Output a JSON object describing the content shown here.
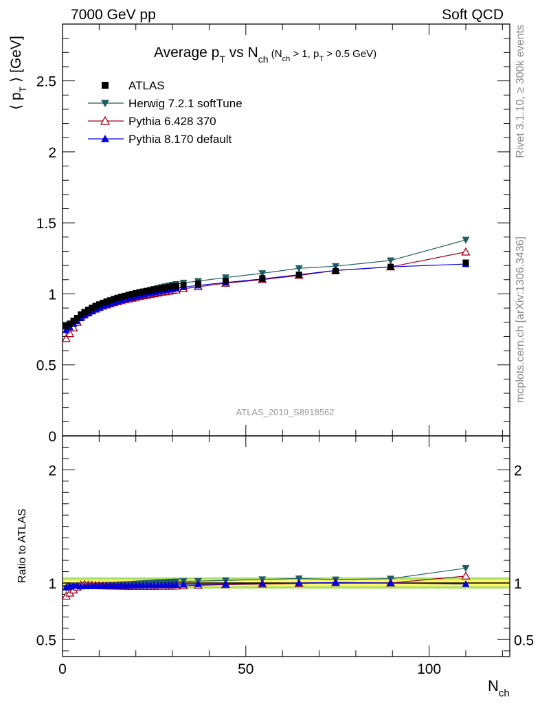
{
  "header": {
    "left": "7000 GeV pp",
    "right": "Soft QCD"
  },
  "side_labels": {
    "top": "Rivet 3.1.10, ≥ 300k events",
    "bottom": "mcplots.cern.ch [arXiv:1306.3436]"
  },
  "chart_data": {
    "type": "line",
    "title": {
      "main_a": "Average p",
      "main_a_sub": "T",
      "main_b": " vs N",
      "main_b_sub": "ch",
      "cut_a": " (N",
      "cut_a_sub": "ch",
      "cut_b": " > 1, p",
      "cut_b_sub": "T",
      "cut_c": " > 0.5 GeV)"
    },
    "analysis_id": "ATLAS_2010_S8918562",
    "ylabel": {
      "pre": "⟨ p",
      "sub": "T",
      "post": " ⟩  [GeV]"
    },
    "ratio_ylabel": "Ratio to ATLAS",
    "xlabel": {
      "main": "N",
      "sub": "ch"
    },
    "xlim": [
      0,
      122
    ],
    "ylim": [
      0,
      2.9
    ],
    "ratio_ylim": [
      0.35,
      2.3
    ],
    "x_ticks": [
      0,
      50,
      100
    ],
    "y_ticks": [
      0,
      0.5,
      1,
      1.5,
      2,
      2.5
    ],
    "y_tick_labels": [
      "0",
      "0.5",
      "1",
      "1.5",
      "2",
      "2.5"
    ],
    "ratio_ticks": [
      0.5,
      1,
      2
    ],
    "ratio_tick_labels": [
      "0.5",
      "1",
      "2"
    ],
    "x": [
      1,
      2,
      3,
      4,
      5,
      6,
      7,
      8,
      9,
      10,
      11,
      12,
      13,
      14,
      15,
      16,
      17,
      18,
      19,
      20,
      21,
      22,
      23,
      24,
      25,
      26,
      27,
      28,
      29,
      30,
      31,
      33,
      37,
      44.5,
      54.5,
      64.5,
      74.5,
      89.5,
      110
    ],
    "series": [
      {
        "name": "ATLAS",
        "color": "#000000",
        "marker": "square",
        "values": [
          0.775,
          0.79,
          0.81,
          0.83,
          0.855,
          0.872,
          0.888,
          0.902,
          0.915,
          0.926,
          0.937,
          0.946,
          0.955,
          0.964,
          0.972,
          0.979,
          0.986,
          0.993,
          0.999,
          1.005,
          1.011,
          1.016,
          1.021,
          1.026,
          1.031,
          1.035,
          1.04,
          1.044,
          1.048,
          1.052,
          1.055,
          1.062,
          1.072,
          1.09,
          1.11,
          1.135,
          1.16,
          1.19,
          1.22
        ]
      },
      {
        "name": "Herwig 7.2.1 softTune",
        "color": "#1f5c60",
        "marker": "triangle-down",
        "values": [
          0.74,
          0.765,
          0.79,
          0.81,
          0.83,
          0.85,
          0.865,
          0.88,
          0.893,
          0.905,
          0.917,
          0.928,
          0.938,
          0.948,
          0.957,
          0.966,
          0.974,
          0.982,
          0.99,
          0.998,
          1.006,
          1.013,
          1.02,
          1.027,
          1.034,
          1.04,
          1.046,
          1.052,
          1.058,
          1.063,
          1.068,
          1.078,
          1.09,
          1.115,
          1.145,
          1.18,
          1.195,
          1.235,
          1.38
        ]
      },
      {
        "name": "Pythia 6.428 370",
        "color": "#a0001c",
        "marker": "triangle-up-open",
        "values": [
          0.685,
          0.72,
          0.76,
          0.8,
          0.84,
          0.86,
          0.872,
          0.885,
          0.895,
          0.905,
          0.914,
          0.922,
          0.93,
          0.938,
          0.945,
          0.952,
          0.958,
          0.964,
          0.97,
          0.976,
          0.981,
          0.986,
          0.991,
          0.996,
          1.001,
          1.006,
          1.011,
          1.015,
          1.019,
          1.023,
          1.027,
          1.036,
          1.05,
          1.075,
          1.1,
          1.13,
          1.165,
          1.19,
          1.295
        ]
      },
      {
        "name": "Pythia 8.170 default",
        "color": "#0000dd",
        "marker": "triangle-up",
        "values": [
          0.745,
          0.765,
          0.79,
          0.81,
          0.83,
          0.848,
          0.863,
          0.877,
          0.89,
          0.901,
          0.912,
          0.922,
          0.931,
          0.94,
          0.948,
          0.956,
          0.963,
          0.97,
          0.977,
          0.983,
          0.989,
          0.995,
          1.001,
          1.006,
          1.011,
          1.016,
          1.021,
          1.026,
          1.03,
          1.034,
          1.038,
          1.048,
          1.06,
          1.08,
          1.105,
          1.135,
          1.165,
          1.19,
          1.21
        ]
      }
    ],
    "band_colors": {
      "inner": "#fff566",
      "outer": "#a8e06a"
    }
  }
}
